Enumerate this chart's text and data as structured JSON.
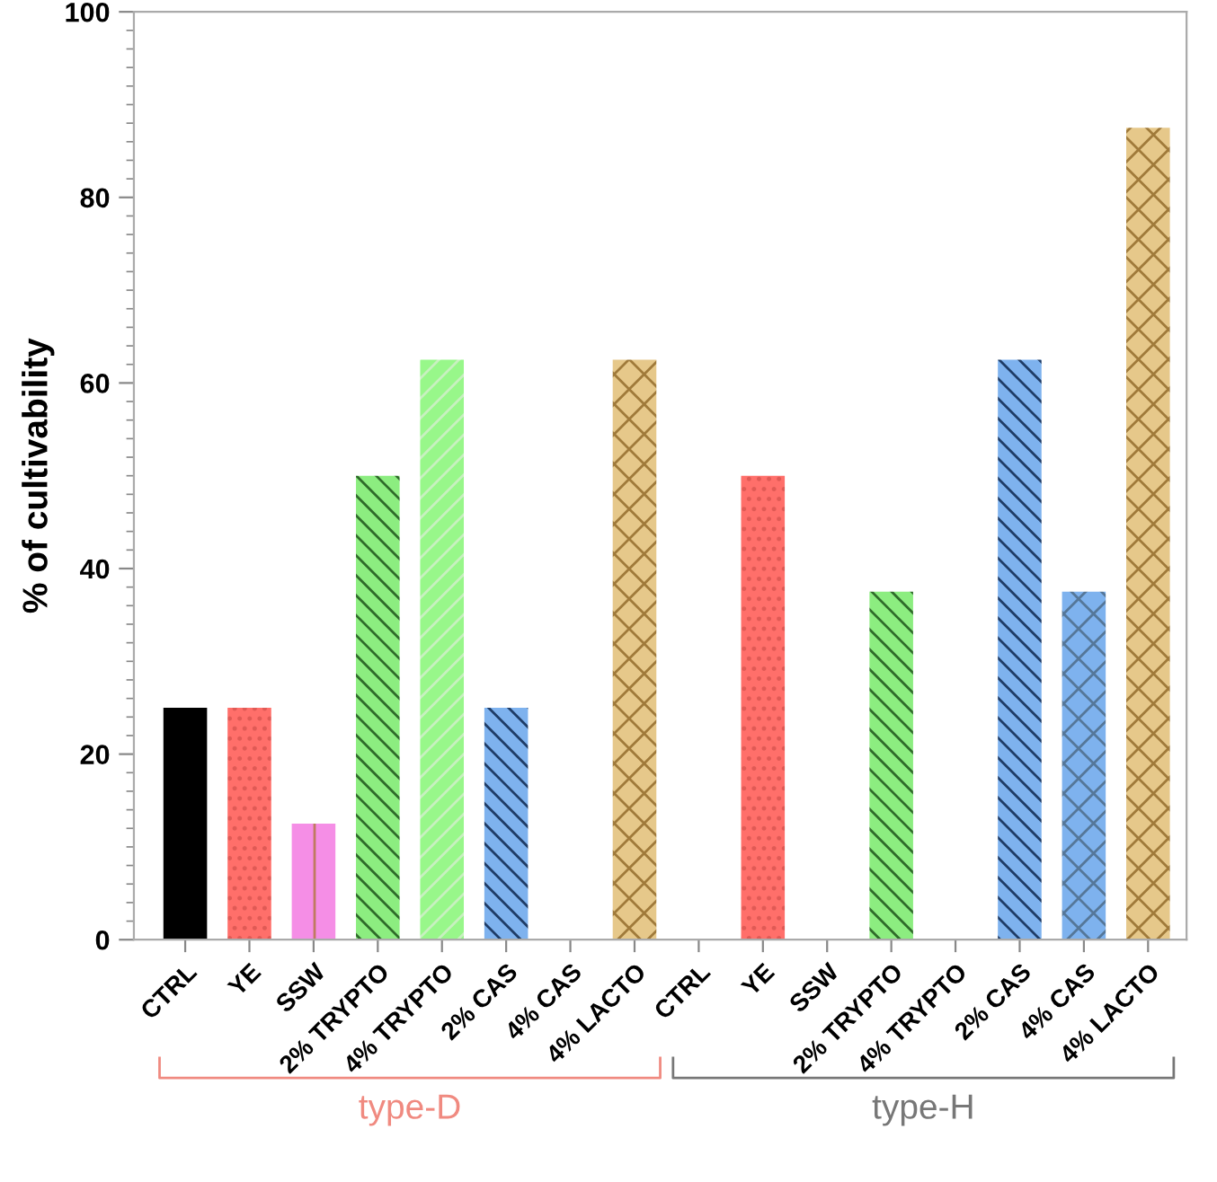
{
  "chart_data": {
    "type": "bar",
    "ylabel": "% of cultivability",
    "categories": [
      "CTRL",
      "YE",
      "SSW",
      "2% TRYPTO",
      "4% TRYPTO",
      "2% CAS",
      "4% CAS",
      "4% LACTO",
      "CTRL",
      "YE",
      "SSW",
      "2% TRYPTO",
      "4% TRYPTO",
      "2% CAS",
      "4% CAS",
      "4% LACTO"
    ],
    "values": [
      25,
      25,
      12.5,
      50,
      62.5,
      25,
      0,
      62.5,
      0,
      50,
      0,
      37.5,
      0,
      62.5,
      37.5,
      87.5
    ],
    "colors": [
      "#000000",
      "#ff6f6a",
      "#f58ee6",
      "#8ced80",
      "#98f78a",
      "#7eb2ee",
      "#7eb2ee",
      "#e6c88a",
      "#000000",
      "#ff6f6a",
      "#f58ee6",
      "#8ced80",
      "#98f78a",
      "#7eb2ee",
      "#7eb2ee",
      "#e6c88a"
    ],
    "ylim": [
      0,
      100
    ],
    "yticks": [
      0,
      20,
      40,
      60,
      80,
      100
    ],
    "annotations": [
      "type-D",
      "type-H"
    ]
  }
}
